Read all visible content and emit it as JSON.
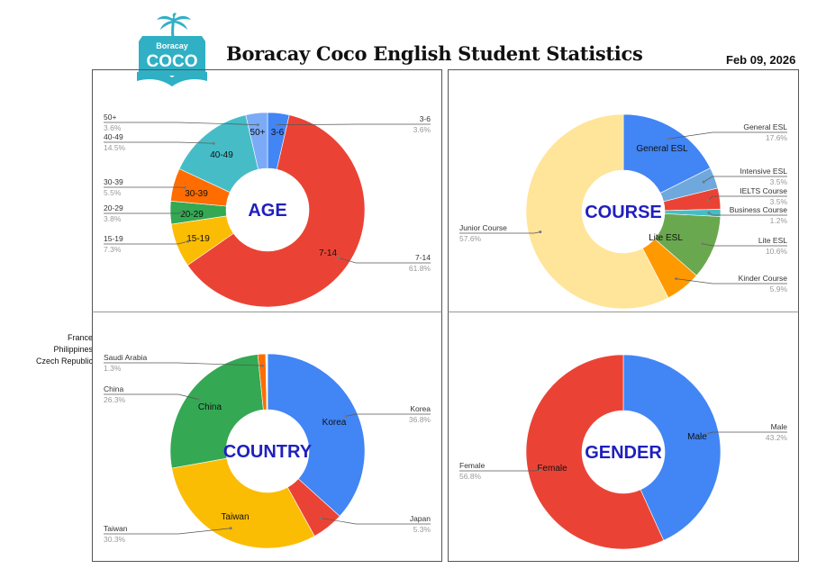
{
  "header": {
    "logo_top": "Boracay",
    "logo_main": "COCO",
    "title": "Boracay Coco English Student Statistics",
    "date": "Feb 09, 2026"
  },
  "outside_labels": [
    "France",
    "Philippines",
    "Czech Republic"
  ],
  "chart_data": [
    {
      "id": "age",
      "type": "pie",
      "title": "AGE",
      "slices": [
        {
          "label": "3-6",
          "value": 3.6,
          "pct": "3.6%",
          "color": "#4285f4",
          "inner_label": "3-6"
        },
        {
          "label": "7-14",
          "value": 61.8,
          "pct": "61.8%",
          "color": "#ea4335",
          "inner_label": "7-14"
        },
        {
          "label": "15-19",
          "value": 7.3,
          "pct": "7.3%",
          "color": "#fbbc04",
          "inner_label": "15-19"
        },
        {
          "label": "20-29",
          "value": 3.8,
          "pct": "3.8%",
          "color": "#34a853",
          "inner_label": "20-29"
        },
        {
          "label": "30-39",
          "value": 5.5,
          "pct": "5.5%",
          "color": "#ff6d01",
          "inner_label": "30-39"
        },
        {
          "label": "40-49",
          "value": 14.5,
          "pct": "14.5%",
          "color": "#46bdc6",
          "inner_label": "40-49"
        },
        {
          "label": "50+",
          "value": 3.6,
          "pct": "3.6%",
          "color": "#7baaf7",
          "inner_label": "50+"
        }
      ]
    },
    {
      "id": "course",
      "type": "pie",
      "title": "COURSE",
      "slices": [
        {
          "label": "General ESL",
          "value": 17.6,
          "pct": "17.6%",
          "color": "#4285f4",
          "inner_label": "General ESL"
        },
        {
          "label": "Intensive ESL",
          "value": 3.5,
          "pct": "3.5%",
          "color": "#6fa8dc",
          "inner_label": ""
        },
        {
          "label": "IELTS Course",
          "value": 3.5,
          "pct": "3.5%",
          "color": "#ea4335",
          "inner_label": ""
        },
        {
          "label": "Business Course",
          "value": 1.2,
          "pct": "1.2%",
          "color": "#46bdc6",
          "inner_label": ""
        },
        {
          "label": "Lite ESL",
          "value": 10.6,
          "pct": "10.6%",
          "color": "#6aa84f",
          "inner_label": "Lite ESL"
        },
        {
          "label": "Kinder Course",
          "value": 5.9,
          "pct": "5.9%",
          "color": "#ff9900",
          "inner_label": ""
        },
        {
          "label": "Junior Course",
          "value": 57.6,
          "pct": "57.6%",
          "color": "#ffe599",
          "inner_label": ""
        }
      ]
    },
    {
      "id": "country",
      "type": "pie",
      "title": "COUNTRY",
      "slices": [
        {
          "label": "Korea",
          "value": 36.8,
          "pct": "36.8%",
          "color": "#4285f4",
          "inner_label": "Korea"
        },
        {
          "label": "Japan",
          "value": 5.3,
          "pct": "5.3%",
          "color": "#ea4335",
          "inner_label": ""
        },
        {
          "label": "Taiwan",
          "value": 30.3,
          "pct": "30.3%",
          "color": "#fbbc04",
          "inner_label": "Taiwan"
        },
        {
          "label": "China",
          "value": 26.3,
          "pct": "26.3%",
          "color": "#34a853",
          "inner_label": "China"
        },
        {
          "label": "Saudi Arabia",
          "value": 1.3,
          "pct": "1.3%",
          "color": "#ff6d01",
          "inner_label": ""
        },
        {
          "label": "France",
          "value": 0.1,
          "pct": "",
          "color": "#46bdc6",
          "inner_label": ""
        },
        {
          "label": "Philippines",
          "value": 0.1,
          "pct": "",
          "color": "#999999",
          "inner_label": ""
        },
        {
          "label": "Czech Republic",
          "value": 0.1,
          "pct": "",
          "color": "#7baaf7",
          "inner_label": ""
        }
      ]
    },
    {
      "id": "gender",
      "type": "pie",
      "title": "GENDER",
      "slices": [
        {
          "label": "Male",
          "value": 43.2,
          "pct": "43.2%",
          "color": "#4285f4",
          "inner_label": "Male"
        },
        {
          "label": "Female",
          "value": 56.8,
          "pct": "56.8%",
          "color": "#ea4335",
          "inner_label": "Female"
        }
      ]
    }
  ]
}
